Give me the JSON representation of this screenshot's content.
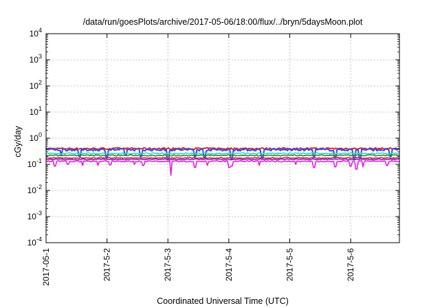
{
  "chart_data": {
    "type": "line",
    "title": "/data/run/goesPlots/archive/2017-05-06/18:00/flux/../bryn/5daysMoon.plot",
    "xlabel": "Coordinated Universal Time (UTC)",
    "ylabel": "cGy/day",
    "y_scale": "log",
    "ylim": [
      0.0001,
      10000
    ],
    "xlim_days": [
      0,
      5.8
    ],
    "x_ticks": [
      {
        "label": "2017-05-1",
        "day": 0
      },
      {
        "label": "2017-5-2",
        "day": 1
      },
      {
        "label": "2017-5-3",
        "day": 2
      },
      {
        "label": "2017-5-4",
        "day": 3
      },
      {
        "label": "2017-5-5",
        "day": 4
      },
      {
        "label": "2017-5-6",
        "day": 5
      }
    ],
    "y_ticks": [
      {
        "base": "10",
        "exp": "-4",
        "value": 0.0001
      },
      {
        "base": "10",
        "exp": "-3",
        "value": 0.001
      },
      {
        "base": "10",
        "exp": "-2",
        "value": 0.01
      },
      {
        "base": "10",
        "exp": "-1",
        "value": 0.1
      },
      {
        "base": "10",
        "exp": "0",
        "value": 1
      },
      {
        "base": "10",
        "exp": "1",
        "value": 10
      },
      {
        "base": "10",
        "exp": "2",
        "value": 100
      },
      {
        "base": "10",
        "exp": "3",
        "value": 1000
      },
      {
        "base": "10",
        "exp": "4",
        "value": 10000
      }
    ],
    "grid": true,
    "legend": "none",
    "series": [
      {
        "color": "#e8202a",
        "level": 0.4,
        "noise": 0.07,
        "dips": []
      },
      {
        "color": "#2b4fe0",
        "level": 0.36,
        "noise": 0.1,
        "dips": [
          [
            0.25,
            0.22
          ],
          [
            0.55,
            0.2
          ],
          [
            1.0,
            0.18
          ],
          [
            1.3,
            0.22
          ],
          [
            1.55,
            0.2
          ],
          [
            2.0,
            0.15
          ],
          [
            2.45,
            0.2
          ],
          [
            2.6,
            0.18
          ],
          [
            3.05,
            0.15
          ],
          [
            3.55,
            0.18
          ],
          [
            4.4,
            0.2
          ],
          [
            4.75,
            0.18
          ],
          [
            5.05,
            0.15
          ],
          [
            5.15,
            0.17
          ],
          [
            5.65,
            0.2
          ]
        ]
      },
      {
        "color": "#3fd0c8",
        "level": 0.26,
        "noise": 0.06,
        "dips": []
      },
      {
        "color": "#2a8a3a",
        "level": 0.22,
        "noise": 0.05,
        "dips": []
      },
      {
        "color": "#e8202a",
        "level": 0.175,
        "noise": 0.04,
        "dips": []
      },
      {
        "color": "#7a2ad0",
        "level": 0.155,
        "noise": 0.04,
        "dips": []
      },
      {
        "color": "#e41de6",
        "level": 0.13,
        "noise": 0.05,
        "dips": [
          [
            0.15,
            0.085
          ],
          [
            0.35,
            0.1
          ],
          [
            0.6,
            0.09
          ],
          [
            0.85,
            0.09
          ],
          [
            1.05,
            0.095
          ],
          [
            1.45,
            0.1
          ],
          [
            1.6,
            0.09
          ],
          [
            2.05,
            0.038
          ],
          [
            2.45,
            0.075
          ],
          [
            2.65,
            0.09
          ],
          [
            3.0,
            0.075
          ],
          [
            3.05,
            0.085
          ],
          [
            3.5,
            0.09
          ],
          [
            4.1,
            0.1
          ],
          [
            4.4,
            0.075
          ],
          [
            4.75,
            0.08
          ],
          [
            5.0,
            0.085
          ],
          [
            5.1,
            0.065
          ],
          [
            5.2,
            0.08
          ],
          [
            5.6,
            0.09
          ]
        ]
      }
    ]
  }
}
